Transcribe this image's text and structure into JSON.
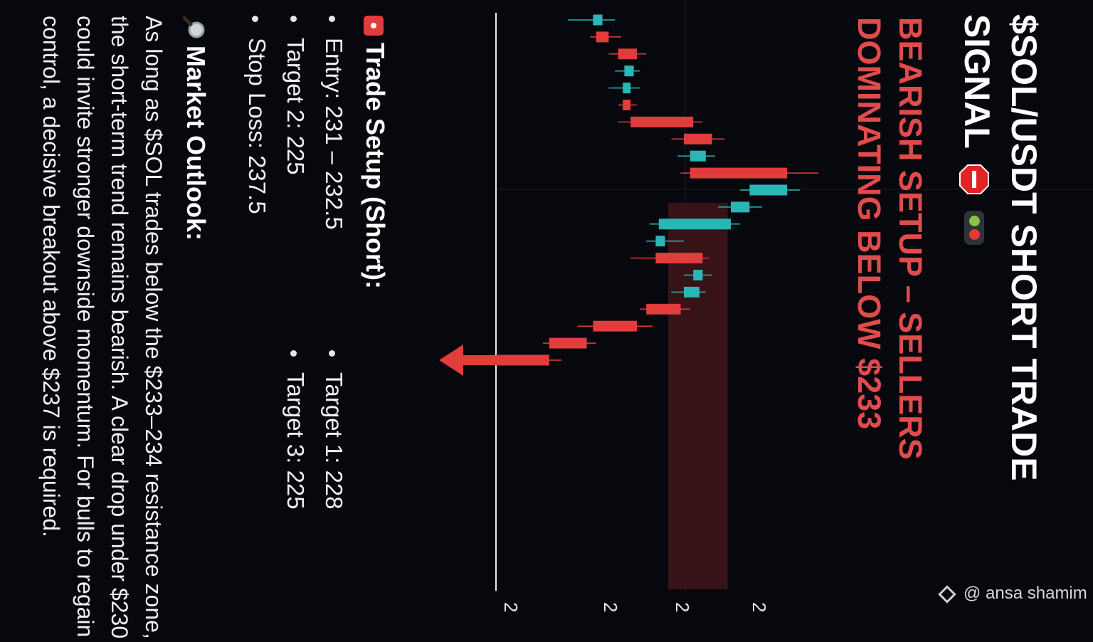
{
  "header": {
    "title": "$SOL/USDT SHORT TRADE SIGNAL",
    "subtitle": "BEARISH SETUP – SELLERS DOMINATING BELOW $233"
  },
  "trade_setup": {
    "heading": "Trade Setup (Short):",
    "entry": "Entry: 231 – 232.5",
    "target1": "Target 1: 228",
    "target2": "Target 2: 225",
    "target3": "Target 3: 225",
    "stop_loss": "Stop Loss: 237.5"
  },
  "market_outlook": {
    "heading": "Market Outlook:",
    "text": "As long as $SOL trades below the $233–234 resistance zone, the short-term trend remains bearish. A clear drop under $230 could invite stronger downside momentum. For bulls to regain control, a decisive breakout above $237 is required."
  },
  "watermark": {
    "text": "@ ansa shamim"
  },
  "icons": {
    "stop": "stop-sign-icon",
    "traffic": "traffic-light-icon",
    "red_square": "red-square-icon",
    "magnifier": "magnifier-icon",
    "watermark_logo": "binance-logo-icon",
    "arrow": "down-arrow-icon"
  },
  "colors": {
    "background": "#06080d",
    "bearish": "#e23c3c",
    "bullish": "#2bb5b5",
    "resistance_zone": "#3a1418",
    "subtitle": "#e14b4b"
  },
  "chart_data": {
    "type": "candlestick",
    "tick_labels": [
      "2",
      "2",
      "2",
      "2"
    ],
    "candles": [
      {
        "open": 3.1,
        "close": 3.4,
        "high": 3.8,
        "low": 2.3
      },
      {
        "open": 3.6,
        "close": 3.2,
        "high": 4.0,
        "low": 3.0
      },
      {
        "open": 4.5,
        "close": 3.9,
        "high": 4.8,
        "low": 3.6
      },
      {
        "open": 4.1,
        "close": 4.4,
        "high": 4.6,
        "low": 3.8
      },
      {
        "open": 4.05,
        "close": 4.3,
        "high": 4.6,
        "low": 3.6
      },
      {
        "open": 4.3,
        "close": 4.05,
        "high": 4.5,
        "low": 3.9
      },
      {
        "open": 6.3,
        "close": 4.3,
        "high": 6.6,
        "low": 3.9
      },
      {
        "open": 6.9,
        "close": 6.0,
        "high": 7.3,
        "low": 5.6
      },
      {
        "open": 6.2,
        "close": 6.7,
        "high": 7.0,
        "low": 5.8
      },
      {
        "open": 9.3,
        "close": 6.2,
        "high": 10.3,
        "low": 5.9
      },
      {
        "open": 8.1,
        "close": 9.3,
        "high": 9.7,
        "low": 7.8
      },
      {
        "open": 7.5,
        "close": 8.1,
        "high": 8.5,
        "low": 7.1
      },
      {
        "open": 5.2,
        "close": 7.5,
        "high": 7.8,
        "low": 4.9
      },
      {
        "open": 5.1,
        "close": 5.4,
        "high": 6.0,
        "low": 4.8
      },
      {
        "open": 6.6,
        "close": 5.1,
        "high": 6.8,
        "low": 4.3
      },
      {
        "open": 6.3,
        "close": 6.6,
        "high": 6.9,
        "low": 6.0
      },
      {
        "open": 6.0,
        "close": 6.5,
        "high": 6.7,
        "low": 5.6
      },
      {
        "open": 5.9,
        "close": 4.8,
        "high": 6.2,
        "low": 4.6
      },
      {
        "open": 4.5,
        "close": 3.1,
        "high": 5.0,
        "low": 2.6
      },
      {
        "open": 2.9,
        "close": 1.7,
        "high": 3.2,
        "low": 1.5
      },
      {
        "open": 1.7,
        "close": 0.0,
        "high": 2.1,
        "low": 0.0
      }
    ],
    "resistance_zone": [
      5.5,
      7.4
    ],
    "baseline": 0.0
  }
}
